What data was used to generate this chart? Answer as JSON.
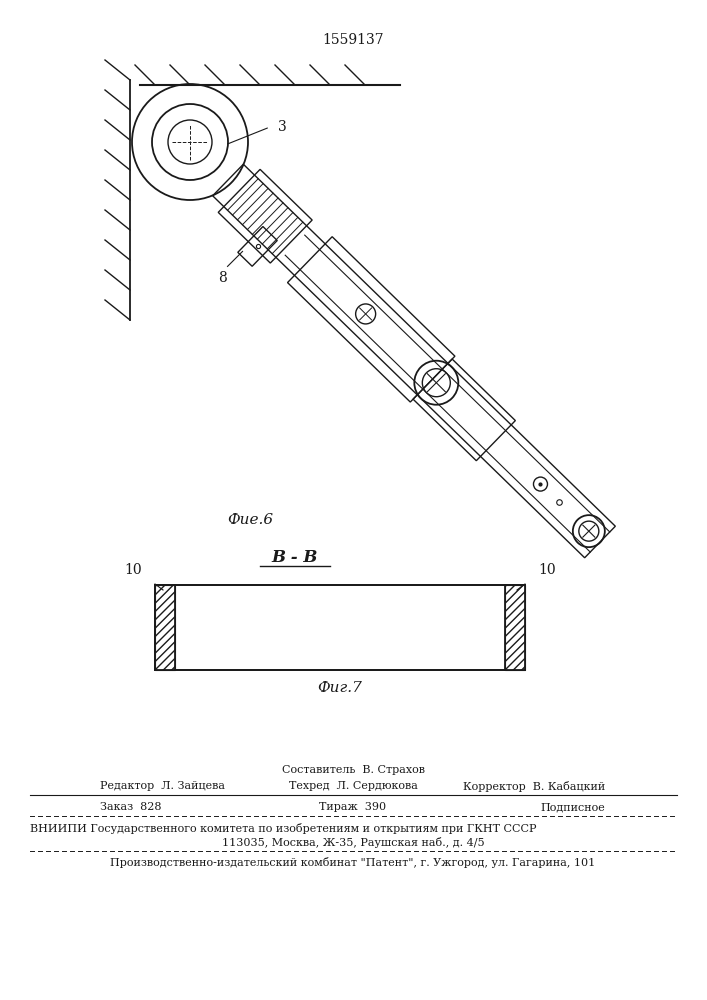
{
  "patent_number": "1559137",
  "fig6_caption": "Фие.6",
  "fig7_caption": "Фиг.7",
  "section_label": "B - B",
  "label_3": "3",
  "label_8": "8",
  "label_10_left": "10",
  "label_10_right": "10",
  "footer_line1": "Составитель  В. Страхов",
  "footer_line2_left": "Редактор  Л. Зайцева",
  "footer_line2_mid": "Техред  Л. Сердюкова",
  "footer_line2_right": "Корректор  В. Кабацкий",
  "footer_line3_left": "Заказ  828",
  "footer_line3_mid": "Тираж  390",
  "footer_line3_right": "Подписное",
  "footer_line4": "ВНИИПИ Государственного комитета по изобретениям и открытиям при ГКНТ СССР",
  "footer_line5": "113035, Москва, Ж-35, Раушская наб., д. 4/5",
  "footer_line6": "Производственно-издательский комбинат \"Патент\", г. Ужгород, ул. Гагарина, 101",
  "bg_color": "#ffffff",
  "line_color": "#1a1a1a"
}
